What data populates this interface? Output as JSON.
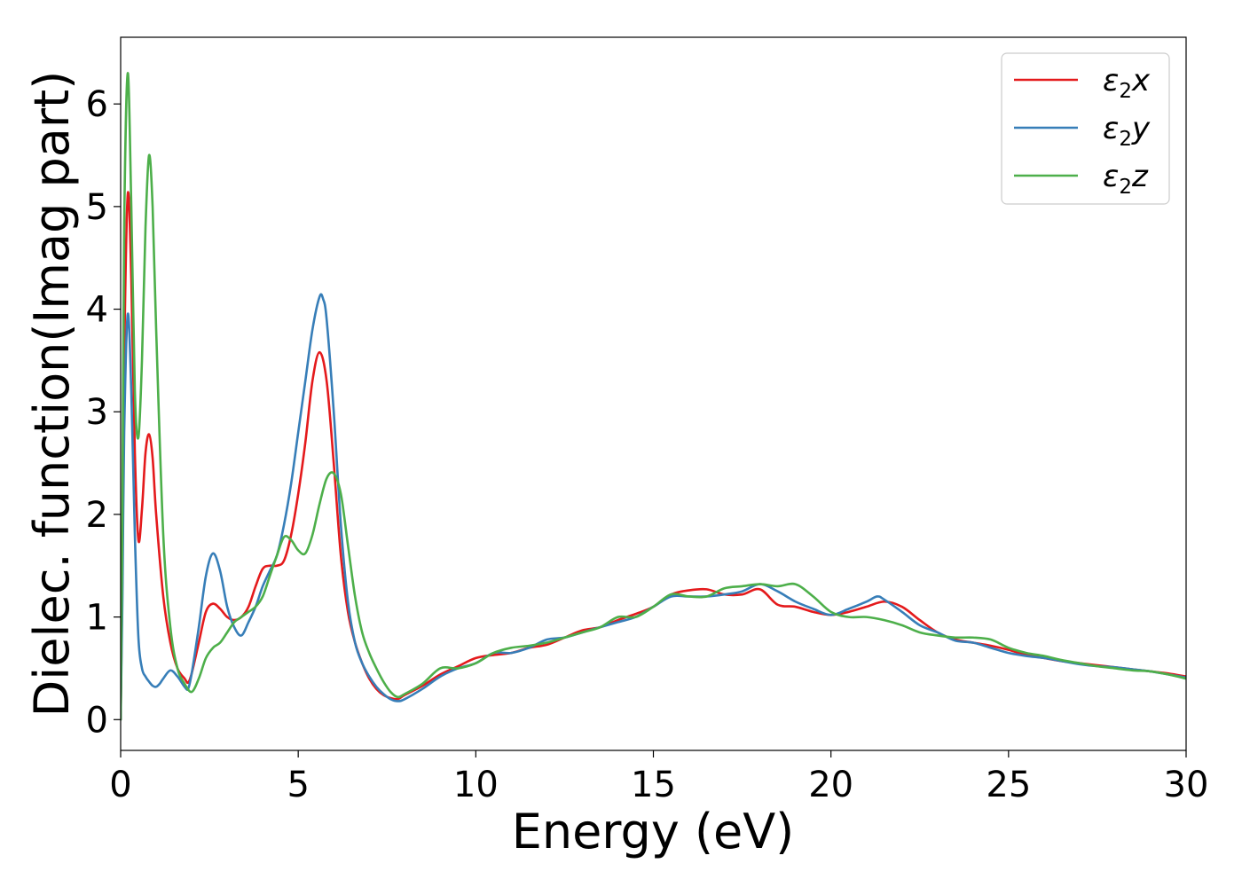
{
  "chart_data": {
    "type": "line",
    "title": "",
    "xlabel": "Energy (eV)",
    "ylabel": "Dielec. function(Imag part)",
    "xlim": [
      0,
      30
    ],
    "ylim": [
      -0.3,
      6.65
    ],
    "xticks": [
      0,
      5,
      10,
      15,
      20,
      25,
      30
    ],
    "yticks": [
      0,
      1,
      2,
      3,
      4,
      5,
      6
    ],
    "grid": false,
    "legend_position": "top-right",
    "series": [
      {
        "name": "ε₂x",
        "legend_base": "ε",
        "legend_sub": "2",
        "legend_suffix": "x",
        "color": "#e41a1c",
        "x": [
          0,
          0.05,
          0.1,
          0.2,
          0.3,
          0.4,
          0.5,
          0.6,
          0.7,
          0.8,
          0.9,
          1.0,
          1.2,
          1.4,
          1.6,
          1.8,
          1.9,
          2.0,
          2.2,
          2.4,
          2.6,
          2.8,
          3.0,
          3.2,
          3.4,
          3.6,
          3.8,
          4.0,
          4.2,
          4.4,
          4.6,
          4.8,
          5.0,
          5.2,
          5.4,
          5.6,
          5.8,
          6.0,
          6.2,
          6.4,
          6.6,
          6.8,
          7.0,
          7.2,
          7.4,
          7.6,
          7.8,
          8.0,
          8.5,
          9.0,
          9.5,
          10.0,
          10.5,
          11.0,
          11.5,
          12.0,
          12.5,
          13.0,
          13.5,
          14.0,
          14.5,
          15.0,
          15.5,
          16.0,
          16.5,
          17.0,
          17.5,
          18.0,
          18.5,
          19.0,
          19.5,
          20.0,
          20.5,
          21.0,
          21.5,
          22.0,
          22.5,
          23.0,
          23.5,
          24.0,
          24.5,
          25.0,
          25.5,
          26.0,
          26.5,
          27.0,
          27.5,
          28.0,
          28.5,
          29.0,
          29.5,
          30.0
        ],
        "y": [
          0.0,
          1.5,
          3.5,
          5.12,
          4.3,
          2.6,
          1.75,
          2.05,
          2.6,
          2.78,
          2.55,
          2.0,
          1.2,
          0.75,
          0.5,
          0.4,
          0.36,
          0.45,
          0.75,
          1.05,
          1.13,
          1.08,
          1.0,
          0.97,
          1.0,
          1.1,
          1.3,
          1.47,
          1.5,
          1.5,
          1.55,
          1.8,
          2.2,
          2.7,
          3.3,
          3.58,
          3.3,
          2.5,
          1.6,
          1.05,
          0.75,
          0.55,
          0.4,
          0.3,
          0.24,
          0.21,
          0.2,
          0.24,
          0.33,
          0.44,
          0.52,
          0.6,
          0.63,
          0.65,
          0.7,
          0.73,
          0.8,
          0.87,
          0.9,
          0.97,
          1.03,
          1.1,
          1.22,
          1.26,
          1.27,
          1.22,
          1.22,
          1.27,
          1.12,
          1.1,
          1.05,
          1.02,
          1.05,
          1.1,
          1.15,
          1.1,
          0.97,
          0.85,
          0.78,
          0.75,
          0.72,
          0.68,
          0.63,
          0.6,
          0.57,
          0.55,
          0.53,
          0.51,
          0.49,
          0.47,
          0.45,
          0.42
        ]
      },
      {
        "name": "ε₂y",
        "legend_base": "ε",
        "legend_sub": "2",
        "legend_suffix": "y",
        "color": "#377eb8",
        "x": [
          0,
          0.05,
          0.1,
          0.2,
          0.3,
          0.4,
          0.5,
          0.6,
          0.7,
          0.8,
          0.9,
          1.0,
          1.1,
          1.2,
          1.4,
          1.6,
          1.8,
          1.9,
          2.0,
          2.2,
          2.4,
          2.6,
          2.8,
          3.0,
          3.2,
          3.4,
          3.6,
          3.8,
          4.0,
          4.2,
          4.4,
          4.6,
          4.8,
          5.0,
          5.2,
          5.4,
          5.6,
          5.7,
          5.8,
          6.0,
          6.2,
          6.4,
          6.6,
          6.8,
          7.0,
          7.2,
          7.4,
          7.6,
          7.8,
          8.0,
          8.5,
          9.0,
          9.5,
          10.0,
          10.5,
          11.0,
          11.5,
          12.0,
          12.5,
          13.0,
          13.5,
          14.0,
          14.5,
          15.0,
          15.5,
          16.0,
          16.5,
          17.0,
          17.5,
          18.0,
          18.5,
          19.0,
          19.5,
          20.0,
          20.5,
          21.0,
          21.3,
          21.5,
          22.0,
          22.5,
          23.0,
          23.5,
          24.0,
          24.5,
          25.0,
          25.5,
          26.0,
          26.5,
          27.0,
          27.5,
          28.0,
          28.5,
          29.0,
          29.5,
          30.0
        ],
        "y": [
          0.0,
          1.2,
          2.8,
          3.95,
          3.2,
          1.8,
          0.8,
          0.5,
          0.42,
          0.37,
          0.33,
          0.32,
          0.35,
          0.4,
          0.48,
          0.42,
          0.32,
          0.3,
          0.45,
          0.9,
          1.4,
          1.62,
          1.45,
          1.1,
          0.9,
          0.82,
          0.95,
          1.1,
          1.3,
          1.45,
          1.6,
          1.9,
          2.3,
          2.8,
          3.3,
          3.8,
          4.12,
          4.1,
          3.9,
          3.0,
          1.9,
          1.15,
          0.75,
          0.55,
          0.42,
          0.32,
          0.25,
          0.2,
          0.18,
          0.2,
          0.3,
          0.42,
          0.5,
          0.55,
          0.65,
          0.65,
          0.7,
          0.78,
          0.8,
          0.85,
          0.9,
          0.95,
          1.0,
          1.1,
          1.2,
          1.2,
          1.2,
          1.22,
          1.25,
          1.32,
          1.25,
          1.15,
          1.08,
          1.02,
          1.08,
          1.15,
          1.2,
          1.17,
          1.05,
          0.92,
          0.85,
          0.77,
          0.75,
          0.7,
          0.65,
          0.62,
          0.6,
          0.57,
          0.54,
          0.52,
          0.51,
          0.49,
          0.47,
          0.44,
          0.41
        ]
      },
      {
        "name": "ε₂z",
        "legend_base": "ε",
        "legend_sub": "2",
        "legend_suffix": "z",
        "color": "#4daf4a",
        "x": [
          0,
          0.05,
          0.1,
          0.2,
          0.3,
          0.4,
          0.5,
          0.6,
          0.7,
          0.8,
          0.9,
          1.0,
          1.2,
          1.4,
          1.6,
          1.8,
          2.0,
          2.2,
          2.4,
          2.6,
          2.8,
          3.0,
          3.2,
          3.4,
          3.6,
          3.8,
          4.0,
          4.2,
          4.4,
          4.6,
          4.8,
          5.0,
          5.2,
          5.4,
          5.6,
          5.8,
          6.0,
          6.2,
          6.4,
          6.6,
          6.8,
          7.0,
          7.2,
          7.4,
          7.6,
          7.8,
          8.0,
          8.5,
          9.0,
          9.5,
          10.0,
          10.5,
          11.0,
          11.5,
          12.0,
          12.5,
          13.0,
          13.5,
          14.0,
          14.5,
          15.0,
          15.5,
          16.0,
          16.5,
          17.0,
          17.5,
          18.0,
          18.5,
          19.0,
          19.5,
          20.0,
          20.5,
          21.0,
          21.5,
          22.0,
          22.5,
          23.0,
          23.5,
          24.0,
          24.5,
          25.0,
          25.5,
          26.0,
          26.5,
          27.0,
          27.5,
          28.0,
          28.5,
          29.0,
          29.5,
          30.0
        ],
        "y": [
          0.0,
          2.0,
          4.8,
          6.3,
          5.0,
          3.2,
          2.75,
          3.5,
          4.8,
          5.5,
          5.0,
          3.8,
          1.8,
          0.9,
          0.5,
          0.35,
          0.27,
          0.4,
          0.6,
          0.7,
          0.75,
          0.85,
          0.95,
          1.0,
          1.05,
          1.1,
          1.2,
          1.4,
          1.6,
          1.78,
          1.75,
          1.65,
          1.62,
          1.8,
          2.1,
          2.35,
          2.4,
          2.2,
          1.7,
          1.2,
          0.85,
          0.65,
          0.5,
          0.37,
          0.27,
          0.22,
          0.25,
          0.35,
          0.5,
          0.5,
          0.55,
          0.65,
          0.7,
          0.72,
          0.75,
          0.8,
          0.85,
          0.9,
          1.0,
          1.0,
          1.1,
          1.22,
          1.2,
          1.2,
          1.28,
          1.3,
          1.32,
          1.3,
          1.32,
          1.2,
          1.05,
          1.0,
          1.0,
          0.97,
          0.92,
          0.85,
          0.82,
          0.8,
          0.8,
          0.78,
          0.7,
          0.65,
          0.62,
          0.58,
          0.55,
          0.52,
          0.5,
          0.48,
          0.47,
          0.44,
          0.4
        ]
      }
    ]
  }
}
